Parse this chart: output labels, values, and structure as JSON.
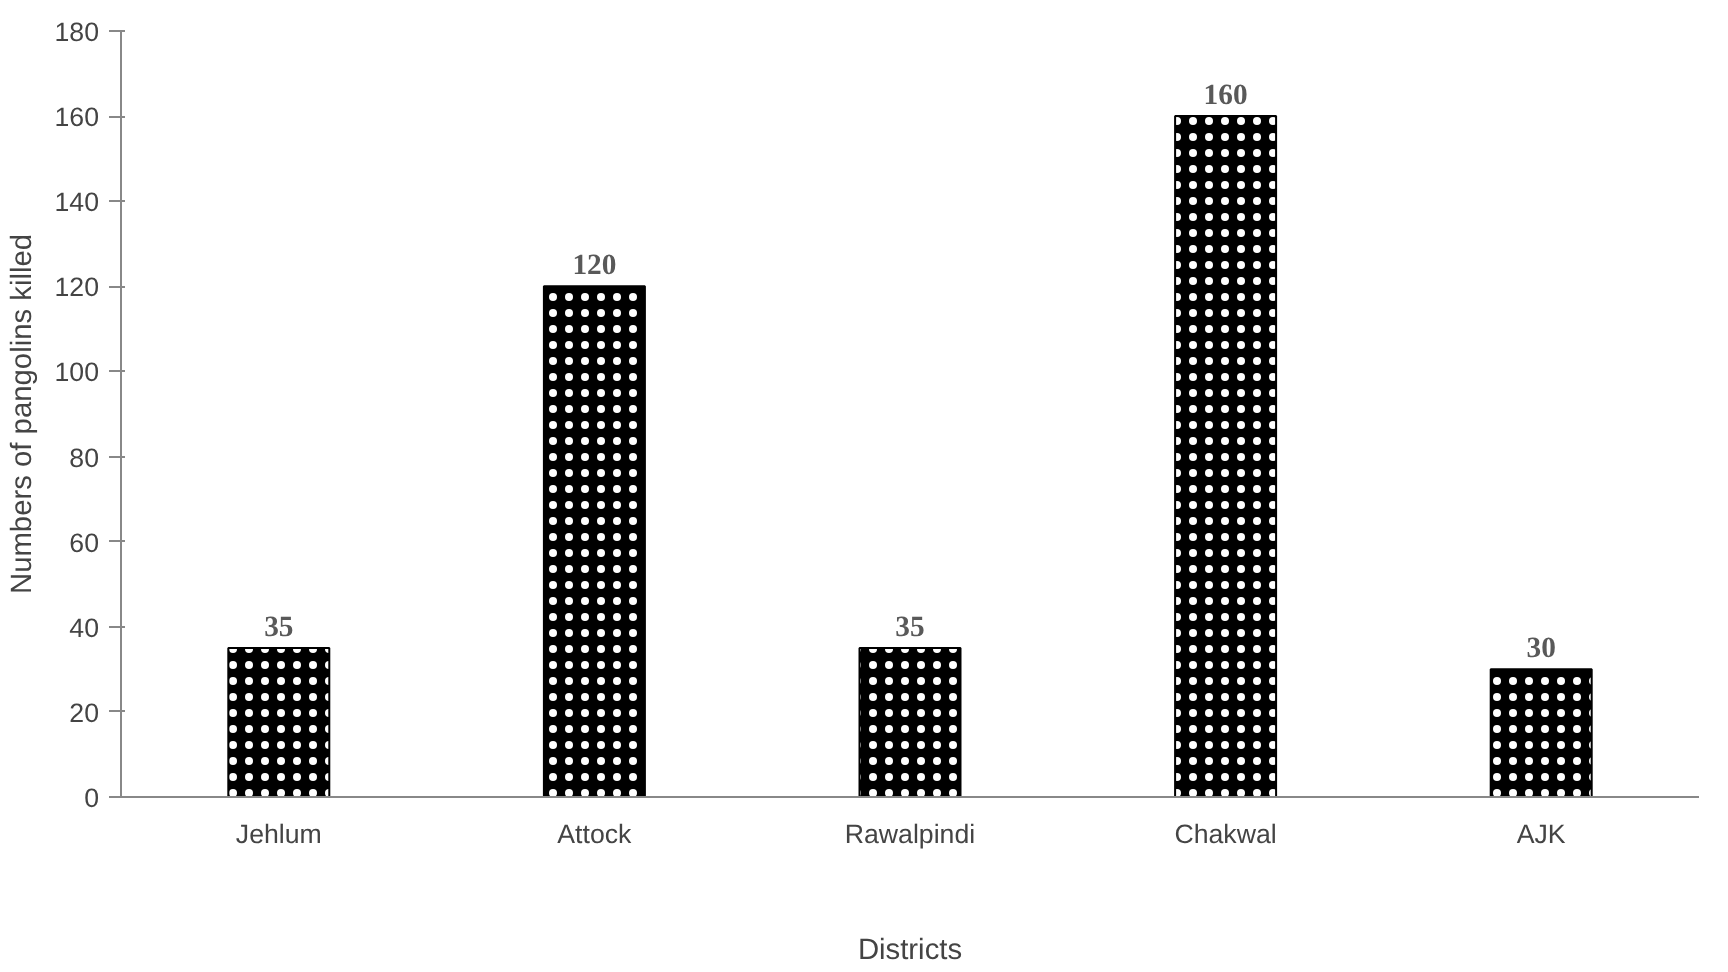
{
  "chart_data": {
    "type": "bar",
    "xlabel": "Districts",
    "ylabel": "Numbers of pangolins killed",
    "categories": [
      "Jehlum",
      "Attock",
      "Rawalpindi",
      "Chakwal",
      "AJK"
    ],
    "values": [
      35,
      120,
      35,
      160,
      30
    ],
    "color": "#000000",
    "ylim": [
      0,
      180
    ],
    "yticks": [
      0,
      20,
      40,
      60,
      80,
      100,
      120,
      140,
      160,
      180
    ],
    "grid": false,
    "data_labels": true
  }
}
